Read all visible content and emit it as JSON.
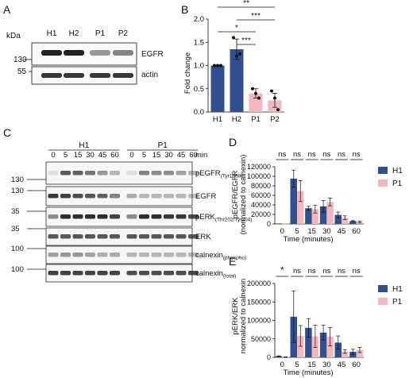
{
  "colors": {
    "h1": "#2f4f8f",
    "p1": "#f2b8bc",
    "ink": "#111111",
    "blot": "#222222"
  },
  "panel_labels": [
    "A",
    "B",
    "C",
    "D",
    "E"
  ],
  "panelA": {
    "kda_label": "kDa",
    "lanes": [
      "H1",
      "H2",
      "P1",
      "P2"
    ],
    "markers": [
      "130",
      "55"
    ],
    "bands": [
      "EGFR",
      "actin"
    ],
    "egfr_intensity": [
      1.0,
      1.0,
      0.45,
      0.55
    ]
  },
  "panelC": {
    "groups": [
      "H1",
      "P1"
    ],
    "timepoints": [
      "0",
      "5",
      "15",
      "30",
      "45",
      "60",
      "0",
      "5",
      "15",
      "30",
      "45",
      "60"
    ],
    "unit": "min",
    "markers": [
      "130",
      "130",
      "35",
      "35",
      "100",
      "100"
    ],
    "bands": [
      {
        "name": "pEGFR",
        "sub": "(Tyr1068)"
      },
      {
        "name": "EGFR",
        "sub": ""
      },
      {
        "name": "pERK",
        "sub": "(Thr202/Tyr204)"
      },
      {
        "name": "ERK",
        "sub": ""
      },
      {
        "name": "calnexin",
        "sub": "(phospho)"
      },
      {
        "name": "calnexin",
        "sub": "(total)"
      }
    ]
  },
  "chart_data": [
    {
      "id": "B",
      "type": "bar",
      "categories": [
        "H1",
        "H2",
        "P1",
        "P2"
      ],
      "values": [
        1.0,
        1.35,
        0.4,
        0.25
      ],
      "errors": [
        0.0,
        0.22,
        0.1,
        0.15
      ],
      "points": [
        [
          1.0,
          1.0,
          1.0
        ],
        [
          1.6,
          1.2,
          1.25
        ],
        [
          0.5,
          0.4,
          0.3
        ],
        [
          0.45,
          0.3,
          0.05
        ]
      ],
      "bar_colors": [
        "h1",
        "h1",
        "p1",
        "p1"
      ],
      "ylabel": "Fold change",
      "ylim": [
        0,
        2.0
      ],
      "yticks": [
        "0.0",
        "0.5",
        "1.0",
        "1.5",
        "2.0"
      ],
      "significance": [
        {
          "label": "**",
          "from": 0,
          "to": 3
        },
        {
          "label": "***",
          "from": 1,
          "to": 3
        },
        {
          "label": "*",
          "from": 0,
          "to": 2
        },
        {
          "label": "***",
          "from": 1,
          "to": 2
        }
      ]
    },
    {
      "id": "D",
      "type": "bar",
      "categories": [
        "0",
        "5",
        "15",
        "30",
        "45",
        "60"
      ],
      "series": [
        {
          "name": "H1",
          "values": [
            1000,
            95000,
            33000,
            37000,
            19000,
            6000
          ],
          "errors": [
            0,
            18000,
            4000,
            12000,
            6000,
            1000
          ]
        },
        {
          "name": "P1",
          "values": [
            500,
            69000,
            31000,
            46000,
            13000,
            4000
          ],
          "errors": [
            0,
            22000,
            8000,
            8000,
            4000,
            2000
          ]
        }
      ],
      "xlabel": "Time (minutes)",
      "ylabel": "pEGFR/EGFR",
      "ylabel2": "(normalized to calnexin)",
      "ylim": [
        0,
        120000
      ],
      "yticks": [
        "0",
        "20000",
        "40000",
        "60000",
        "80000",
        "100000",
        "120000"
      ],
      "significance": [
        "ns",
        "ns",
        "ns",
        "ns",
        "ns",
        "ns"
      ],
      "legend_position": "right"
    },
    {
      "id": "E",
      "type": "bar",
      "categories": [
        "0",
        "5",
        "15",
        "30",
        "45",
        "60"
      ],
      "series": [
        {
          "name": "H1",
          "values": [
            3000,
            110000,
            80000,
            67000,
            40000,
            15000
          ],
          "errors": [
            1000,
            70000,
            25000,
            20000,
            18000,
            7000
          ]
        },
        {
          "name": "P1",
          "values": [
            1000,
            58000,
            57000,
            56000,
            16000,
            20000
          ],
          "errors": [
            500,
            28000,
            30000,
            25000,
            5000,
            7000
          ]
        }
      ],
      "xlabel": "Time (minutes)",
      "ylabel": "pERK/ERK",
      "ylabel2": "normalized to calnexin",
      "ylim": [
        0,
        200000
      ],
      "yticks": [
        "0",
        "50000",
        "100000",
        "150000",
        "200000"
      ],
      "significance": [
        "*",
        "ns",
        "ns",
        "ns",
        "ns",
        "ns"
      ],
      "legend_position": "right"
    }
  ]
}
